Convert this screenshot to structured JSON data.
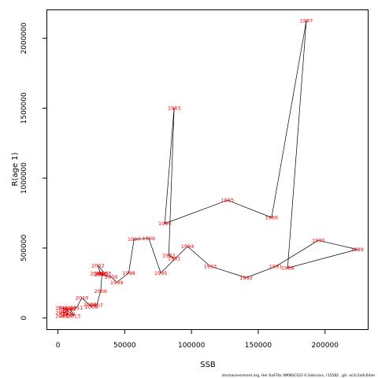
{
  "chart_data": {
    "type": "line",
    "title": "",
    "xlabel": "SSB",
    "ylabel": "R(age 1)",
    "xlim": [
      -8000,
      232000
    ],
    "ylim": [
      -80000,
      2200000
    ],
    "x_ticks": [
      0,
      50000,
      100000,
      150000,
      200000
    ],
    "y_ticks": [
      0,
      500000,
      1000000,
      1500000,
      2000000
    ],
    "grid": false,
    "legend": "none",
    "line_color": "#000000",
    "label_color": "#ff0000",
    "series": [
      {
        "points": [
          {
            "year": "1981",
            "x": 87000,
            "y": 425000
          },
          {
            "year": "1982",
            "x": 83000,
            "y": 448000
          },
          {
            "year": "1983",
            "x": 87000,
            "y": 1500000
          },
          {
            "year": "1984",
            "x": 80000,
            "y": 675000
          },
          {
            "year": "1985",
            "x": 127000,
            "y": 842000
          },
          {
            "year": "1986",
            "x": 160000,
            "y": 718000
          },
          {
            "year": "1987",
            "x": 186000,
            "y": 2125000
          },
          {
            "year": "1988",
            "x": 172000,
            "y": 357000
          },
          {
            "year": "1989",
            "x": 224000,
            "y": 490000
          },
          {
            "year": "1990",
            "x": 195000,
            "y": 555000
          },
          {
            "year": "1991",
            "x": 163000,
            "y": 368000
          },
          {
            "year": "1992",
            "x": 141000,
            "y": 288000
          },
          {
            "year": "1993",
            "x": 114000,
            "y": 370000
          },
          {
            "year": "1994",
            "x": 97000,
            "y": 512000
          },
          {
            "year": "1995",
            "x": 77000,
            "y": 322000
          },
          {
            "year": "1996",
            "x": 68000,
            "y": 570000
          },
          {
            "year": "1997",
            "x": 57000,
            "y": 563000
          },
          {
            "year": "1998",
            "x": 53000,
            "y": 322000
          },
          {
            "year": "1999",
            "x": 44000,
            "y": 255000
          },
          {
            "year": "2000",
            "x": 40000,
            "y": 293000
          },
          {
            "year": "2001",
            "x": 32000,
            "y": 310000
          },
          {
            "year": "2002",
            "x": 30000,
            "y": 376000
          },
          {
            "year": "2003",
            "x": 35000,
            "y": 318000
          },
          {
            "year": "2004",
            "x": 29000,
            "y": 318000
          },
          {
            "year": "2005",
            "x": 33000,
            "y": 318000
          },
          {
            "year": "2006",
            "x": 32000,
            "y": 192000
          },
          {
            "year": "2007",
            "x": 29000,
            "y": 90000
          },
          {
            "year": "2008",
            "x": 24000,
            "y": 95000
          },
          {
            "year": "2009",
            "x": 25000,
            "y": 78000
          },
          {
            "year": "2010",
            "x": 18000,
            "y": 145000
          },
          {
            "year": "2011",
            "x": 14000,
            "y": 74000
          },
          {
            "year": "2012",
            "x": 9000,
            "y": 68000
          },
          {
            "year": "2013",
            "x": 12000,
            "y": 15000
          },
          {
            "year": "2014",
            "x": 5000,
            "y": 70000
          },
          {
            "year": "2015",
            "x": 3000,
            "y": 70000
          },
          {
            "year": "2016",
            "x": 8000,
            "y": 63000
          },
          {
            "year": "2017",
            "x": 6000,
            "y": 46000
          },
          {
            "year": "2018",
            "x": 3000,
            "y": 38000
          },
          {
            "year": "2019",
            "x": 8000,
            "y": 30000
          },
          {
            "year": "2020",
            "x": 6000,
            "y": 18000
          },
          {
            "year": "2021",
            "x": 3000,
            "y": 14000
          }
        ]
      }
    ]
  },
  "footer": {
    "text": "stockassessment.org,  Her  6aS7bc  WKNSCS22  0.2obsvars,  r15582 ,  git:  ec2c2a0c6dde"
  }
}
